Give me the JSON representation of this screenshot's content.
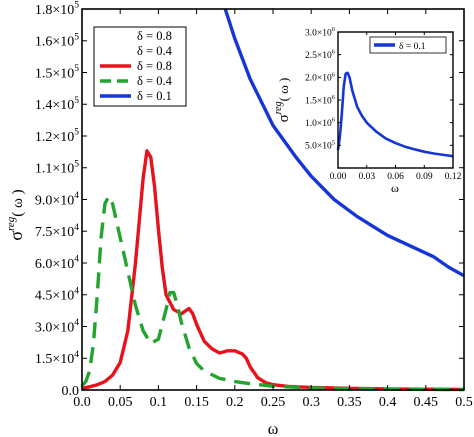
{
  "chart_data": [
    {
      "type": "line",
      "xlabel": "ω",
      "ylabel_main": "σ",
      "ylabel_sup": "reg",
      "ylabel_tail": "( ω )",
      "xlim": [
        0.0,
        0.5
      ],
      "ylim": [
        0,
        180000
      ],
      "xticks": [
        0.0,
        0.05,
        0.1,
        0.15,
        0.2,
        0.25,
        0.3,
        0.35,
        0.4,
        0.45,
        0.5
      ],
      "xtick_labels": [
        "0.0",
        "0.05",
        "0.1",
        "0.15",
        "0.2",
        "0.25",
        "0.3",
        "0.35",
        "0.4",
        "0.45",
        "0.5"
      ],
      "yticks": [
        0,
        15000,
        30000,
        45000,
        60000,
        75000,
        90000,
        105000,
        120000,
        135000,
        150000,
        165000,
        180000
      ],
      "ytick_mant": [
        "0.0",
        "1.5×10",
        "3.0×10",
        "4.5×10",
        "6.0×10",
        "7.5×10",
        "9.0×10",
        "1.1×10",
        "1.2×10",
        "1.4×10",
        "1.5×10",
        "1.6×10",
        "1.8×10"
      ],
      "ytick_exp": [
        "",
        "4",
        "4",
        "4",
        "4",
        "4",
        "4",
        "5",
        "5",
        "5",
        "5",
        "5",
        "5"
      ],
      "legend_position": "top-left",
      "legend_entries": [
        {
          "label": "δ = 0.8",
          "color": "",
          "dash": ""
        },
        {
          "label": "δ = 0.4",
          "color": "",
          "dash": ""
        },
        {
          "label": "δ = 0.8",
          "color": "#e8121c",
          "dash": ""
        },
        {
          "label": "δ = 0.4",
          "color": "#22a52e",
          "dash": "16,9"
        },
        {
          "label": "δ = 0.1",
          "color": "#1535d6",
          "dash": ""
        }
      ],
      "series": [
        {
          "name": "δ = 0.8",
          "color": "#e8121c",
          "dash": "",
          "x": [
            0.0,
            0.01,
            0.02,
            0.03,
            0.04,
            0.05,
            0.06,
            0.07,
            0.08,
            0.085,
            0.09,
            0.095,
            0.1,
            0.105,
            0.11,
            0.12,
            0.13,
            0.14,
            0.145,
            0.15,
            0.16,
            0.17,
            0.18,
            0.19,
            0.2,
            0.21,
            0.215,
            0.22,
            0.23,
            0.24,
            0.25,
            0.27,
            0.3,
            0.35,
            0.4,
            0.45,
            0.5
          ],
          "y": [
            800,
            1500,
            2500,
            4000,
            7000,
            13000,
            28000,
            60000,
            100000,
            113000,
            110000,
            96000,
            76000,
            58000,
            45000,
            38000,
            36000,
            38500,
            36000,
            31000,
            23000,
            19500,
            17500,
            18500,
            18500,
            17000,
            15000,
            11000,
            5800,
            3500,
            2500,
            1700,
            1200,
            800,
            500,
            350,
            250
          ]
        },
        {
          "name": "δ = 0.4",
          "color": "#22a52e",
          "dash": "16,9",
          "x": [
            0.0,
            0.005,
            0.01,
            0.015,
            0.02,
            0.025,
            0.03,
            0.035,
            0.04,
            0.045,
            0.05,
            0.06,
            0.07,
            0.08,
            0.09,
            0.1,
            0.11,
            0.115,
            0.12,
            0.125,
            0.13,
            0.14,
            0.15,
            0.16,
            0.18,
            0.2,
            0.22,
            0.25,
            0.3,
            0.35,
            0.4,
            0.45,
            0.5
          ],
          "y": [
            2000,
            4000,
            9000,
            22000,
            45000,
            72000,
            88000,
            91500,
            88000,
            80000,
            72000,
            56000,
            40000,
            28000,
            22000,
            24000,
            38000,
            46000,
            46000,
            40000,
            32000,
            20000,
            12500,
            9000,
            5500,
            4000,
            3000,
            1800,
            1000,
            600,
            400,
            300,
            200
          ]
        },
        {
          "name": "δ = 0.1",
          "color": "#1535d6",
          "dash": "",
          "x": [
            0.1875,
            0.2,
            0.22,
            0.25,
            0.28,
            0.3,
            0.33,
            0.36,
            0.4,
            0.43,
            0.46,
            0.48,
            0.5
          ],
          "y": [
            180000,
            166000,
            147000,
            125000,
            110000,
            101000,
            90000,
            82000,
            73000,
            68000,
            63000,
            58000,
            54000
          ]
        }
      ]
    },
    {
      "type": "line",
      "xlabel": "ω",
      "ylabel_main": "σ",
      "ylabel_sup": "reg",
      "ylabel_tail": "( ω )",
      "xlim": [
        0.0,
        0.12
      ],
      "ylim": [
        0,
        3000000
      ],
      "xticks": [
        0.0,
        0.03,
        0.06,
        0.09,
        0.12
      ],
      "xtick_labels": [
        "0.00",
        "0.03",
        "0.06",
        "0.09",
        "0.12"
      ],
      "yticks": [
        500000,
        1000000,
        1500000,
        2000000,
        2500000,
        3000000
      ],
      "ytick_mant": [
        "5.0×10",
        "1.0×10",
        "1.5×10",
        "2.0×10",
        "2.5×10",
        "3.0×10"
      ],
      "ytick_exp": [
        "5",
        "6",
        "6",
        "6",
        "6",
        "6"
      ],
      "legend_position": "top-right",
      "legend_entries": [
        {
          "label": "δ = 0.1",
          "color": "#1535d6",
          "dash": ""
        }
      ],
      "series": [
        {
          "name": "δ = 0.1",
          "color": "#1535d6",
          "dash": "",
          "x": [
            0.0,
            0.002,
            0.004,
            0.006,
            0.008,
            0.01,
            0.012,
            0.015,
            0.02,
            0.025,
            0.03,
            0.04,
            0.05,
            0.06,
            0.07,
            0.08,
            0.09,
            0.1,
            0.11,
            0.12
          ],
          "y": [
            400000,
            700000,
            1200000,
            1800000,
            2080000,
            2100000,
            2000000,
            1700000,
            1350000,
            1150000,
            1000000,
            800000,
            650000,
            550000,
            470000,
            410000,
            360000,
            320000,
            290000,
            260000
          ]
        }
      ]
    }
  ]
}
